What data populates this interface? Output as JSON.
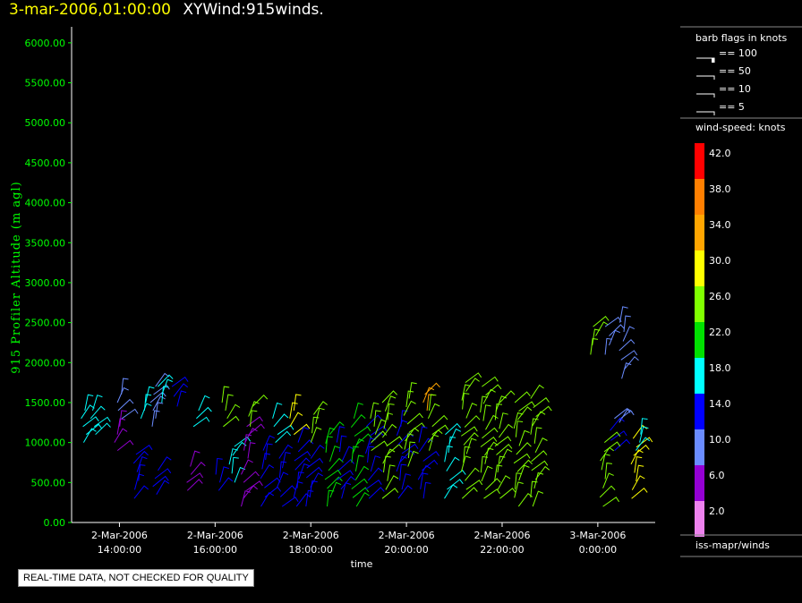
{
  "header": {
    "date": "3-mar-2006,01:00:00",
    "title": "XYWind:915winds."
  },
  "notice": "REAL-TIME DATA, NOT CHECKED FOR QUALITY",
  "legend": {
    "barb_title": "barb flags in knots",
    "barb_items": [
      "== 100",
      "== 50",
      "== 10",
      "== 5"
    ],
    "speed_title": "wind-speed: knots",
    "source": "iss-mapr/winds",
    "scale": [
      {
        "label": "42.0",
        "color": "#ff0000"
      },
      {
        "label": "38.0",
        "color": "#ff7f00"
      },
      {
        "label": "34.0",
        "color": "#ffa500"
      },
      {
        "label": "30.0",
        "color": "#ffff00"
      },
      {
        "label": "26.0",
        "color": "#80ff00"
      },
      {
        "label": "22.0",
        "color": "#00e000"
      },
      {
        "label": "18.0",
        "color": "#00ffff"
      },
      {
        "label": "14.0",
        "color": "#0000ff"
      },
      {
        "label": "10.0",
        "color": "#6a8cff"
      },
      {
        "label": "6.0",
        "color": "#9400d3"
      },
      {
        "label": "2.0",
        "color": "#ee82ee"
      }
    ]
  },
  "chart_data": {
    "type": "wind-barb",
    "title": "",
    "xlabel": "time",
    "ylabel": "915 Profiler Altitude (m agl)",
    "ylim": [
      0,
      6200
    ],
    "y_ticks": [
      "0.00",
      "500.00",
      "1000.00",
      "1500.00",
      "2000.00",
      "2500.00",
      "3000.00",
      "3500.00",
      "4000.00",
      "4500.00",
      "5000.00",
      "5500.00",
      "6000.00"
    ],
    "xlim": [
      13.0,
      25.2
    ],
    "x_ticks": [
      {
        "x": 14,
        "date": "2-Mar-2006",
        "time": "14:00:00"
      },
      {
        "x": 16,
        "date": "2-Mar-2006",
        "time": "16:00:00"
      },
      {
        "x": 18,
        "date": "2-Mar-2006",
        "time": "18:00:00"
      },
      {
        "x": 20,
        "date": "2-Mar-2006",
        "time": "20:00:00"
      },
      {
        "x": 22,
        "date": "2-Mar-2006",
        "time": "22:00:00"
      },
      {
        "x": 24,
        "date": "3-Mar-2006",
        "time": "0:00:00"
      }
    ],
    "profiles": [
      {
        "x": 13.25,
        "y0": 1000,
        "y1": 1400,
        "speed": 16
      },
      {
        "x": 13.45,
        "y0": 1100,
        "y1": 1400,
        "speed": 18
      },
      {
        "x": 14.0,
        "y0": 1300,
        "y1": 1600,
        "speed": 8
      },
      {
        "x": 13.95,
        "y0": 900,
        "y1": 1200,
        "speed": 7
      },
      {
        "x": 14.35,
        "y0": 300,
        "y1": 850,
        "speed": 14
      },
      {
        "x": 14.5,
        "y0": 1300,
        "y1": 1500,
        "speed": 17
      },
      {
        "x": 14.7,
        "y0": 1200,
        "y1": 1700,
        "speed": 9
      },
      {
        "x": 14.85,
        "y0": 1500,
        "y1": 1700,
        "speed": 16
      },
      {
        "x": 15.15,
        "y0": 1450,
        "y1": 1700,
        "speed": 15
      },
      {
        "x": 14.75,
        "y0": 350,
        "y1": 650,
        "speed": 12
      },
      {
        "x": 15.45,
        "y0": 400,
        "y1": 700,
        "speed": 7
      },
      {
        "x": 15.6,
        "y0": 1200,
        "y1": 1400,
        "speed": 18
      },
      {
        "x": 16.2,
        "y0": 1200,
        "y1": 1500,
        "speed": 24
      },
      {
        "x": 16.05,
        "y0": 400,
        "y1": 600,
        "speed": 12
      },
      {
        "x": 16.35,
        "y0": 500,
        "y1": 950,
        "speed": 16
      },
      {
        "x": 16.65,
        "y0": 800,
        "y1": 1200,
        "speed": 7
      },
      {
        "x": 16.75,
        "y0": 1200,
        "y1": 1450,
        "speed": 24
      },
      {
        "x": 16.6,
        "y0": 200,
        "y1": 600,
        "speed": 7
      },
      {
        "x": 17.0,
        "y0": 200,
        "y1": 900,
        "speed": 13
      },
      {
        "x": 17.25,
        "y0": 1000,
        "y1": 1300,
        "speed": 19
      },
      {
        "x": 17.35,
        "y0": 200,
        "y1": 800,
        "speed": 12
      },
      {
        "x": 17.6,
        "y0": 1100,
        "y1": 1400,
        "speed": 29
      },
      {
        "x": 17.7,
        "y0": 200,
        "y1": 1000,
        "speed": 13
      },
      {
        "x": 18.05,
        "y0": 1000,
        "y1": 1350,
        "speed": 27
      },
      {
        "x": 17.95,
        "y0": 200,
        "y1": 800,
        "speed": 13
      },
      {
        "x": 18.35,
        "y0": 200,
        "y1": 1100,
        "speed": 20
      },
      {
        "x": 18.6,
        "y0": 300,
        "y1": 1000,
        "speed": 12
      },
      {
        "x": 18.9,
        "y0": 200,
        "y1": 1300,
        "speed": 22
      },
      {
        "x": 19.2,
        "y0": 300,
        "y1": 1200,
        "speed": 15
      },
      {
        "x": 19.3,
        "y0": 900,
        "y1": 1300,
        "speed": 26
      },
      {
        "x": 19.55,
        "y0": 300,
        "y1": 1500,
        "speed": 24
      },
      {
        "x": 19.85,
        "y0": 300,
        "y1": 1200,
        "speed": 14
      },
      {
        "x": 20.0,
        "y0": 700,
        "y1": 1550,
        "speed": 27
      },
      {
        "x": 20.3,
        "y0": 300,
        "y1": 1000,
        "speed": 13
      },
      {
        "x": 20.4,
        "y0": 1400,
        "y1": 1600,
        "speed": 34
      },
      {
        "x": 20.5,
        "y0": 900,
        "y1": 1400,
        "speed": 25
      },
      {
        "x": 20.85,
        "y0": 300,
        "y1": 1100,
        "speed": 17
      },
      {
        "x": 21.2,
        "y0": 300,
        "y1": 1750,
        "speed": 24
      },
      {
        "x": 21.6,
        "y0": 300,
        "y1": 1700,
        "speed": 26
      },
      {
        "x": 21.9,
        "y0": 300,
        "y1": 1500,
        "speed": 26
      },
      {
        "x": 22.3,
        "y0": 200,
        "y1": 1500,
        "speed": 27
      },
      {
        "x": 22.65,
        "y0": 200,
        "y1": 1550,
        "speed": 25
      },
      {
        "x": 23.9,
        "y0": 2100,
        "y1": 2450,
        "speed": 24
      },
      {
        "x": 24.2,
        "y0": 2100,
        "y1": 2450,
        "speed": 8
      },
      {
        "x": 24.5,
        "y0": 1800,
        "y1": 2500,
        "speed": 11
      },
      {
        "x": 24.4,
        "y0": 1250,
        "y1": 1300,
        "speed": 8
      },
      {
        "x": 24.3,
        "y0": 900,
        "y1": 1150,
        "speed": 14
      },
      {
        "x": 24.1,
        "y0": 200,
        "y1": 1000,
        "speed": 26
      },
      {
        "x": 24.75,
        "y0": 300,
        "y1": 1050,
        "speed": 29
      },
      {
        "x": 24.85,
        "y0": 900,
        "y1": 1100,
        "speed": 17
      }
    ]
  }
}
